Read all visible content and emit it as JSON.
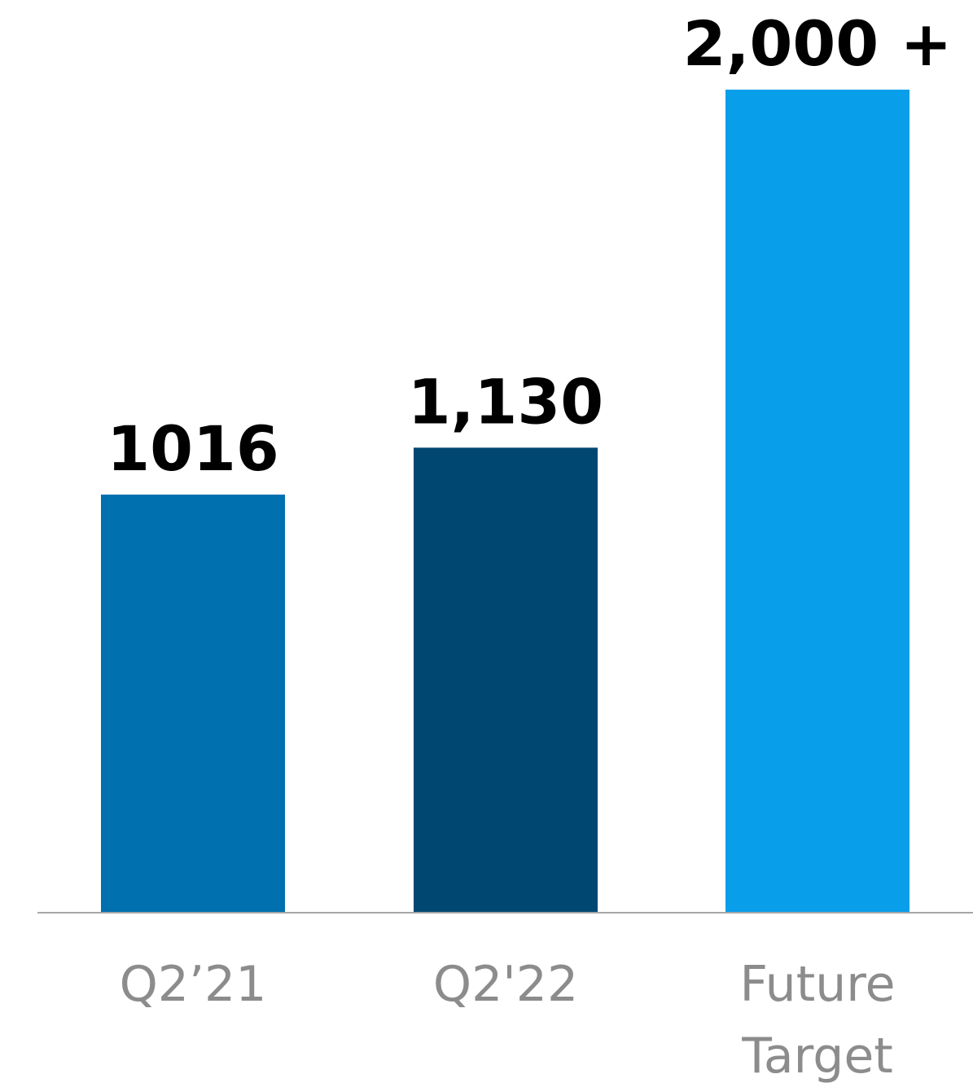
{
  "chart_data": {
    "type": "bar",
    "categories": [
      [
        "Q2’21"
      ],
      [
        "Q2'22"
      ],
      [
        "Future",
        "Target"
      ]
    ],
    "values": [
      1016,
      1130,
      2000
    ],
    "data_labels": [
      "1016",
      "1,130",
      "2,000 +"
    ],
    "colors": [
      "#0070AF",
      "#004872",
      "#089EE9"
    ],
    "axis_color": "#a6a6a6",
    "title": "",
    "xlabel": "",
    "ylabel": "",
    "ylim": [
      0,
      2000
    ],
    "grid": false,
    "legend": "none"
  }
}
